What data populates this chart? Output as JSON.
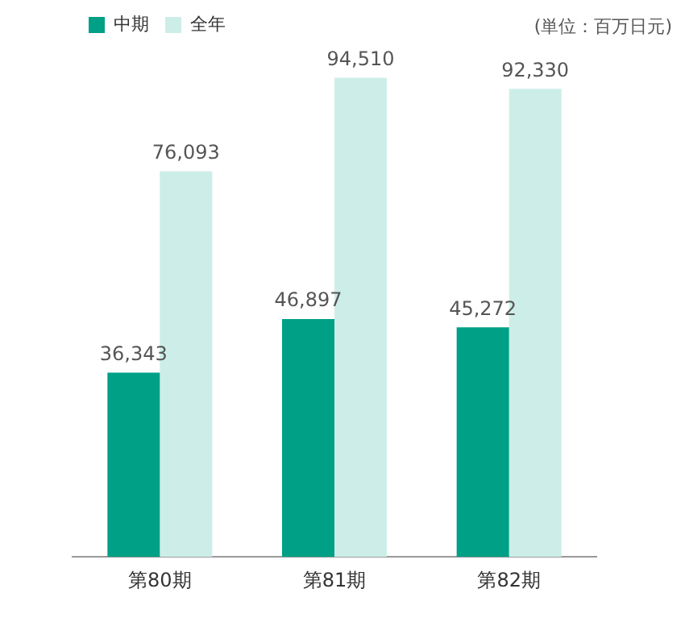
{
  "chart_data": {
    "type": "bar",
    "categories": [
      "第80期",
      "第81期",
      "第82期"
    ],
    "series": [
      {
        "name": "中期",
        "color": "#00a086",
        "values": [
          36343,
          46897,
          45272
        ],
        "value_labels": [
          "36,343",
          "46,897",
          "45,272"
        ]
      },
      {
        "name": "全年",
        "color": "#cdeee8",
        "values": [
          76093,
          94510,
          92330
        ],
        "value_labels": [
          "76,093",
          "94,510",
          "92,330"
        ]
      }
    ],
    "legend": "top left",
    "annotations": [
      "(単位：百万日元)"
    ]
  }
}
